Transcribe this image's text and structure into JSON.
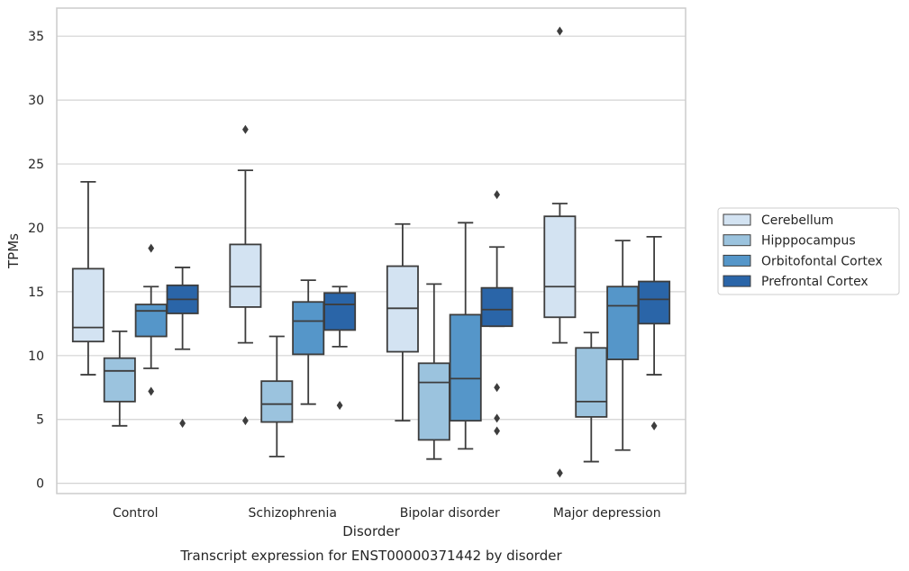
{
  "chart_data": {
    "type": "box",
    "title": "Transcript expression for ENST00000371442 by disorder",
    "xlabel": "Disorder",
    "ylabel": "TPMs",
    "categories": [
      "Control",
      "Schizophrenia",
      "Bipolar disorder",
      "Major depression"
    ],
    "yticks": [
      0,
      5,
      10,
      15,
      20,
      25,
      30,
      35
    ],
    "ylim": [
      -0.8,
      37.2
    ],
    "grid": true,
    "legend_position": "right",
    "series": [
      {
        "name": "Cerebellum",
        "color": "#d3e3f2",
        "boxes": [
          {
            "whislo": 8.5,
            "q1": 11.1,
            "med": 12.2,
            "q3": 16.8,
            "whishi": 23.6,
            "fliers": []
          },
          {
            "whislo": 11.0,
            "q1": 13.8,
            "med": 15.4,
            "q3": 18.7,
            "whishi": 24.5,
            "fliers": [
              27.7,
              4.9
            ]
          },
          {
            "whislo": 4.9,
            "q1": 10.3,
            "med": 13.7,
            "q3": 17.0,
            "whishi": 20.3,
            "fliers": []
          },
          {
            "whislo": 11.0,
            "q1": 13.0,
            "med": 15.4,
            "q3": 20.9,
            "whishi": 21.9,
            "fliers": [
              35.4,
              0.8
            ]
          }
        ]
      },
      {
        "name": "Hipppocampus",
        "color": "#9bc3de",
        "boxes": [
          {
            "whislo": 4.5,
            "q1": 6.4,
            "med": 8.8,
            "q3": 9.8,
            "whishi": 11.9,
            "fliers": []
          },
          {
            "whislo": 2.1,
            "q1": 4.8,
            "med": 6.2,
            "q3": 8.0,
            "whishi": 11.5,
            "fliers": []
          },
          {
            "whislo": 1.9,
            "q1": 3.4,
            "med": 7.9,
            "q3": 9.4,
            "whishi": 15.6,
            "fliers": []
          },
          {
            "whislo": 1.7,
            "q1": 5.2,
            "med": 6.4,
            "q3": 10.6,
            "whishi": 11.8,
            "fliers": []
          }
        ]
      },
      {
        "name": "Orbitofontal Cortex",
        "color": "#5596c9",
        "boxes": [
          {
            "whislo": 9.0,
            "q1": 11.5,
            "med": 13.5,
            "q3": 14.0,
            "whishi": 15.4,
            "fliers": [
              18.4,
              7.2
            ]
          },
          {
            "whislo": 6.2,
            "q1": 10.1,
            "med": 12.7,
            "q3": 14.2,
            "whishi": 15.9,
            "fliers": []
          },
          {
            "whislo": 2.7,
            "q1": 4.9,
            "med": 8.2,
            "q3": 13.2,
            "whishi": 20.4,
            "fliers": []
          },
          {
            "whislo": 2.6,
            "q1": 9.7,
            "med": 13.9,
            "q3": 15.4,
            "whishi": 19.0,
            "fliers": []
          }
        ]
      },
      {
        "name": "Prefrontal Cortex",
        "color": "#2a65a8",
        "boxes": [
          {
            "whislo": 10.5,
            "q1": 13.3,
            "med": 14.4,
            "q3": 15.5,
            "whishi": 16.9,
            "fliers": [
              4.7
            ]
          },
          {
            "whislo": 10.7,
            "q1": 12.0,
            "med": 14.0,
            "q3": 14.9,
            "whishi": 15.4,
            "fliers": [
              6.1
            ]
          },
          {
            "whislo": 12.3,
            "q1": 12.3,
            "med": 13.6,
            "q3": 15.3,
            "whishi": 18.5,
            "fliers": [
              22.6,
              7.5,
              5.1,
              4.1
            ]
          },
          {
            "whislo": 8.5,
            "q1": 12.5,
            "med": 14.4,
            "q3": 15.8,
            "whishi": 19.3,
            "fliers": [
              4.5
            ]
          }
        ]
      }
    ]
  }
}
